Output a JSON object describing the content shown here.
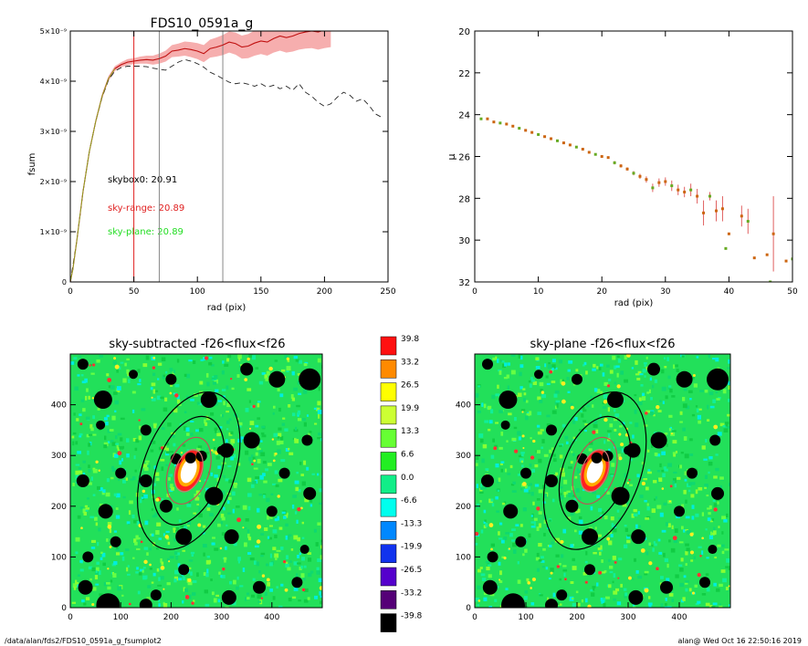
{
  "footer": {
    "path": "/data/alan/fds2/FDS10_0591a_g_fsumplot2",
    "user_time": "alan@  Wed Oct 16 22:50:16 2019"
  },
  "chart_data": [
    {
      "type": "line",
      "title": "FDS10_0591a_g",
      "xlabel": "rad (pix)",
      "ylabel": "fsum",
      "xlim": [
        0,
        250
      ],
      "ylim": [
        0,
        5e-09
      ],
      "xticks": [
        "0",
        "50",
        "100",
        "150",
        "200",
        "250"
      ],
      "yticks": [
        "0",
        "1×10⁻⁹",
        "2×10⁻⁹",
        "3×10⁻⁹",
        "4×10⁻⁹",
        "5×10⁻⁹"
      ],
      "vlines": [
        {
          "x": 50,
          "color": "#e02020"
        },
        {
          "x": 70,
          "color": "#888888"
        },
        {
          "x": 120,
          "color": "#888888"
        }
      ],
      "annotations": [
        {
          "text": "skybox0: 20.91",
          "color": "#000000"
        },
        {
          "text": "sky-range: 20.89",
          "color": "#e02020"
        },
        {
          "text": "sky-plane: 20.89",
          "color": "#22dd22"
        }
      ],
      "series": [
        {
          "style": "solid-red-with-band",
          "x": [
            0,
            2,
            5,
            8,
            10,
            15,
            20,
            25,
            30,
            35,
            40,
            45,
            50,
            55,
            60,
            65,
            70,
            75,
            80,
            85,
            90,
            95,
            100,
            105,
            110,
            115,
            120,
            125,
            130,
            135,
            140,
            145,
            150,
            155,
            160,
            165,
            170,
            175,
            180,
            185,
            190,
            195,
            200,
            205
          ],
          "y": [
            0,
            2.5e-10,
            8e-10,
            1.4e-09,
            1.8e-09,
            2.6e-09,
            3.2e-09,
            3.7e-09,
            4.05e-09,
            4.25e-09,
            4.33e-09,
            4.38e-09,
            4.4e-09,
            4.42e-09,
            4.43e-09,
            4.42e-09,
            4.45e-09,
            4.5e-09,
            4.6e-09,
            4.62e-09,
            4.65e-09,
            4.63e-09,
            4.6e-09,
            4.55e-09,
            4.65e-09,
            4.68e-09,
            4.72e-09,
            4.78e-09,
            4.75e-09,
            4.68e-09,
            4.7e-09,
            4.76e-09,
            4.8e-09,
            4.78e-09,
            4.85e-09,
            4.9e-09,
            4.87e-09,
            4.9e-09,
            4.95e-09,
            4.98e-09,
            5e-09,
            4.98e-09,
            5.02e-09,
            5.05e-09
          ],
          "err": [
            0,
            0,
            1e-11,
            2e-11,
            2e-11,
            3e-11,
            4e-11,
            5e-11,
            5e-11,
            5e-11,
            5e-11,
            6e-11,
            6e-11,
            7e-11,
            8e-11,
            9e-11,
            1e-10,
            1.1e-10,
            1.2e-10,
            1.3e-10,
            1.4e-10,
            1.5e-10,
            1.6e-10,
            1.7e-10,
            1.8e-10,
            1.9e-10,
            2e-10,
            2.1e-10,
            2.2e-10,
            2.3e-10,
            2.4e-10,
            2.5e-10,
            2.6e-10,
            2.7e-10,
            2.8e-10,
            2.9e-10,
            3e-10,
            3.1e-10,
            3.2e-10,
            3.3e-10,
            3.4e-10,
            3.5e-10,
            3.6e-10,
            3.7e-10
          ]
        },
        {
          "style": "dashed-black",
          "x": [
            0,
            5,
            10,
            15,
            20,
            25,
            30,
            35,
            40,
            45,
            50,
            55,
            60,
            65,
            70,
            75,
            80,
            85,
            90,
            95,
            100,
            105,
            110,
            115,
            120,
            125,
            130,
            135,
            140,
            145,
            150,
            155,
            160,
            165,
            170,
            175,
            180,
            185,
            190,
            195,
            200,
            205,
            210,
            215,
            220,
            225,
            230,
            235,
            240,
            245
          ],
          "y": [
            0,
            8e-10,
            1.8e-09,
            2.6e-09,
            3.2e-09,
            3.68e-09,
            4.02e-09,
            4.2e-09,
            4.27e-09,
            4.3e-09,
            4.3e-09,
            4.3e-09,
            4.29e-09,
            4.26e-09,
            4.24e-09,
            4.22e-09,
            4.3e-09,
            4.38e-09,
            4.43e-09,
            4.4e-09,
            4.35e-09,
            4.28e-09,
            4.18e-09,
            4.12e-09,
            4.05e-09,
            3.98e-09,
            3.95e-09,
            3.97e-09,
            3.94e-09,
            3.9e-09,
            3.95e-09,
            3.88e-09,
            3.92e-09,
            3.85e-09,
            3.9e-09,
            3.82e-09,
            3.95e-09,
            3.78e-09,
            3.7e-09,
            3.58e-09,
            3.5e-09,
            3.55e-09,
            3.68e-09,
            3.78e-09,
            3.72e-09,
            3.6e-09,
            3.65e-09,
            3.52e-09,
            3.35e-09,
            3.28e-09
          ]
        }
      ]
    },
    {
      "type": "scatter",
      "xlabel": "rad (pix)",
      "ylabel": "μ",
      "xlim": [
        0,
        50
      ],
      "ylim": [
        32,
        20
      ],
      "xticks": [
        "0",
        "10",
        "20",
        "30",
        "40",
        "50"
      ],
      "yticks": [
        "20",
        "22",
        "24",
        "26",
        "28",
        "30",
        "32"
      ],
      "points": [
        {
          "x": 1,
          "y": 24.2,
          "err": 0.05
        },
        {
          "x": 2,
          "y": 24.2,
          "err": 0.05
        },
        {
          "x": 3,
          "y": 24.35,
          "err": 0.05
        },
        {
          "x": 4,
          "y": 24.4,
          "err": 0.05
        },
        {
          "x": 5,
          "y": 24.45,
          "err": 0.05
        },
        {
          "x": 6,
          "y": 24.55,
          "err": 0.05
        },
        {
          "x": 7,
          "y": 24.65,
          "err": 0.05
        },
        {
          "x": 8,
          "y": 24.75,
          "err": 0.05
        },
        {
          "x": 9,
          "y": 24.85,
          "err": 0.05
        },
        {
          "x": 10,
          "y": 24.95,
          "err": 0.05
        },
        {
          "x": 11,
          "y": 25.05,
          "err": 0.05
        },
        {
          "x": 12,
          "y": 25.15,
          "err": 0.05
        },
        {
          "x": 13,
          "y": 25.25,
          "err": 0.05
        },
        {
          "x": 14,
          "y": 25.35,
          "err": 0.05
        },
        {
          "x": 15,
          "y": 25.45,
          "err": 0.05
        },
        {
          "x": 16,
          "y": 25.55,
          "err": 0.05
        },
        {
          "x": 17,
          "y": 25.65,
          "err": 0.05
        },
        {
          "x": 18,
          "y": 25.8,
          "err": 0.05
        },
        {
          "x": 19,
          "y": 25.9,
          "err": 0.05
        },
        {
          "x": 20,
          "y": 26.0,
          "err": 0.05
        },
        {
          "x": 21,
          "y": 26.05,
          "err": 0.05
        },
        {
          "x": 22,
          "y": 26.3,
          "err": 0.08
        },
        {
          "x": 23,
          "y": 26.45,
          "err": 0.08
        },
        {
          "x": 24,
          "y": 26.6,
          "err": 0.08
        },
        {
          "x": 25,
          "y": 26.8,
          "err": 0.1
        },
        {
          "x": 26,
          "y": 26.95,
          "err": 0.12
        },
        {
          "x": 27,
          "y": 27.1,
          "err": 0.15
        },
        {
          "x": 28,
          "y": 27.5,
          "err": 0.2
        },
        {
          "x": 29,
          "y": 27.25,
          "err": 0.2
        },
        {
          "x": 30,
          "y": 27.2,
          "err": 0.2
        },
        {
          "x": 31,
          "y": 27.4,
          "err": 0.25
        },
        {
          "x": 32,
          "y": 27.6,
          "err": 0.25
        },
        {
          "x": 33,
          "y": 27.7,
          "err": 0.25
        },
        {
          "x": 34,
          "y": 27.6,
          "err": 0.3
        },
        {
          "x": 35,
          "y": 27.9,
          "err": 0.35
        },
        {
          "x": 36,
          "y": 28.7,
          "err": 0.6
        },
        {
          "x": 37,
          "y": 27.9,
          "err": 0.2
        },
        {
          "x": 38,
          "y": 28.6,
          "err": 0.5
        },
        {
          "x": 39,
          "y": 28.5,
          "err": 0.6
        },
        {
          "x": 39.5,
          "y": 30.4,
          "err": 0
        },
        {
          "x": 40,
          "y": 29.7,
          "err": 0
        },
        {
          "x": 42,
          "y": 28.85,
          "err": 0.5
        },
        {
          "x": 43,
          "y": 29.1,
          "err": 0.6
        },
        {
          "x": 44,
          "y": 30.85,
          "err": 0
        },
        {
          "x": 46,
          "y": 30.7,
          "err": 0
        },
        {
          "x": 46.5,
          "y": 32.0,
          "err": 0
        },
        {
          "x": 47,
          "y": 29.7,
          "err": 1.8
        },
        {
          "x": 49,
          "y": 31.0,
          "err": 0
        },
        {
          "x": 50,
          "y": 30.9,
          "err": 0
        }
      ]
    },
    {
      "type": "heatmap",
      "title": "sky-subtracted -f26<flux<f26",
      "xlim": [
        0,
        500
      ],
      "ylim": [
        0,
        500
      ],
      "xticks": [
        "0",
        "100",
        "200",
        "300",
        "400"
      ],
      "yticks": [
        "0",
        "100",
        "200",
        "300",
        "400"
      ]
    },
    {
      "type": "heatmap",
      "title": "sky-plane -f26<flux<f26",
      "xlim": [
        0,
        500
      ],
      "ylim": [
        0,
        500
      ],
      "xticks": [
        "0",
        "100",
        "200",
        "300",
        "400"
      ],
      "yticks": [
        "0",
        "100",
        "200",
        "300",
        "400"
      ]
    },
    {
      "type": "colorbar",
      "labels": [
        "39.8",
        "33.2",
        "26.5",
        "19.9",
        "13.3",
        "6.6",
        "0.0",
        "-6.6",
        "-13.3",
        "-19.9",
        "-26.5",
        "-33.2",
        "-39.8"
      ],
      "colors": [
        "#ff1010",
        "#ff8a00",
        "#ffff00",
        "#ccff33",
        "#66ff33",
        "#22ee22",
        "#11ee88",
        "#00ffee",
        "#0088ff",
        "#1133ee",
        "#5500cc",
        "#550077",
        "#000000"
      ]
    }
  ]
}
